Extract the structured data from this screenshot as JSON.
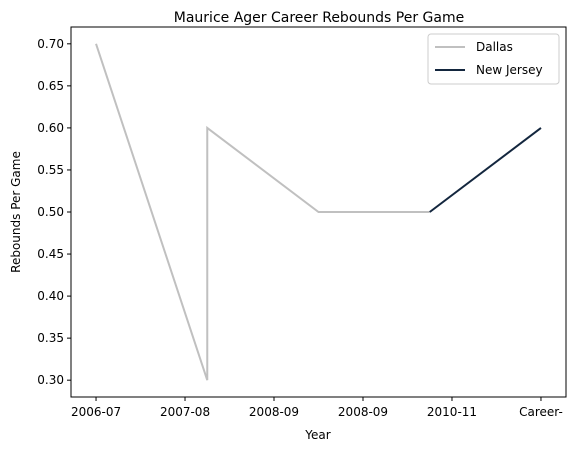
{
  "chart_data": {
    "type": "line",
    "title": "Maurice Ager Career Rebounds Per Game",
    "xlabel": "Year",
    "ylabel": "Rebounds Per Game",
    "x_ticks": [
      "2006-07",
      "2007-08",
      "2008-09",
      "2008-09",
      "2010-11",
      "Career-"
    ],
    "y_ticks": [
      "0.30",
      "0.35",
      "0.40",
      "0.45",
      "0.50",
      "0.55",
      "0.60",
      "0.65",
      "0.70"
    ],
    "ylim": [
      0.28,
      0.72
    ],
    "xlim": [
      -0.225,
      4.225
    ],
    "grid": false,
    "legend_position": "top-right",
    "series": [
      {
        "name": "Dallas",
        "color": "#c0c0c0",
        "points": [
          {
            "x": 0,
            "y": 0.7
          },
          {
            "x": 1,
            "y": 0.3
          },
          {
            "x": 1,
            "y": 0.6
          },
          {
            "x": 2,
            "y": 0.5
          },
          {
            "x": 3,
            "y": 0.5
          }
        ]
      },
      {
        "name": "New Jersey",
        "color": "#13263e",
        "points": [
          {
            "x": 3,
            "y": 0.5
          },
          {
            "x": 4,
            "y": 0.6
          }
        ]
      }
    ]
  }
}
